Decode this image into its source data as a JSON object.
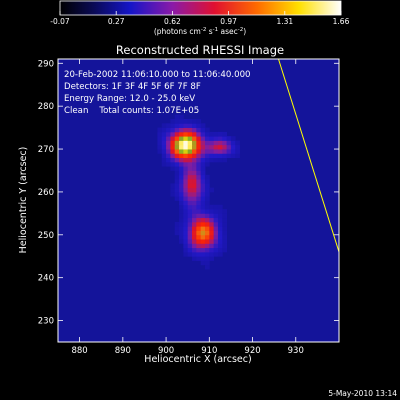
{
  "chart_data": {
    "type": "heatmap",
    "title": "Reconstructed RHESSI Image",
    "xlabel": "Heliocentric X (arcsec)",
    "ylabel": "Heliocentric Y (arcsec)",
    "xlim": [
      875,
      940
    ],
    "ylim": [
      225,
      291
    ],
    "xticks": [
      880,
      890,
      900,
      910,
      920,
      930
    ],
    "yticks": [
      230,
      240,
      250,
      260,
      270,
      280,
      290
    ],
    "colorbar": {
      "ticks": [
        "-0.07",
        "0.27",
        "0.62",
        "0.97",
        "1.31",
        "1.66"
      ],
      "label_pre": "(photons cm",
      "label_sup1": "-2",
      "label_mid": " s",
      "label_sup2": "-1",
      "label_mid2": " asec",
      "label_sup3": "-2",
      "label_post": ")"
    },
    "annotations": [
      "20-Feb-2002 11:06:10.000 to 11:06:40.000",
      "Detectors: 1F 3F 4F 5F 6F 7F 8F",
      "Energy Range: 12.0 - 25.0 keV",
      "Clean    Total counts: 1.07E+05"
    ],
    "sources": [
      {
        "x": 904.5,
        "y": 271.0,
        "peak": 1.66,
        "sx": 2.6,
        "sy": 2.4
      },
      {
        "x": 912.5,
        "y": 270.5,
        "peak": 0.7,
        "sx": 2.0,
        "sy": 1.4
      },
      {
        "x": 906.0,
        "y": 261.5,
        "peak": 0.75,
        "sx": 1.8,
        "sy": 3.2
      },
      {
        "x": 908.5,
        "y": 250.5,
        "peak": 1.15,
        "sx": 2.3,
        "sy": 2.8
      }
    ],
    "limb_line": [
      [
        926.0,
        291.0
      ],
      [
        940.0,
        246.0
      ]
    ],
    "timestamp": "5-May-2010 13:14"
  }
}
